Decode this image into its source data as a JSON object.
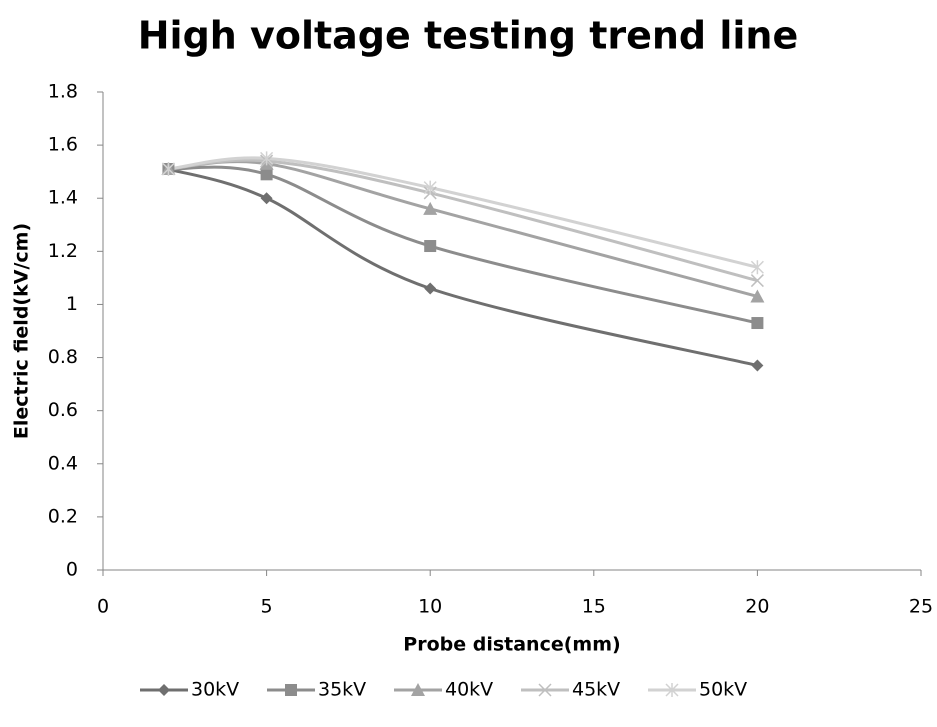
{
  "chart_data": {
    "type": "line",
    "title": "High voltage testing trend line",
    "x_label": "Probe distance(mm)",
    "y_label": "Electric field(kV/cm)",
    "x": [
      2,
      5,
      10,
      20
    ],
    "series": [
      {
        "name": "30kV",
        "color": "#6f6f6f",
        "marker": "diamond",
        "values": [
          1.51,
          1.4,
          1.06,
          0.77
        ]
      },
      {
        "name": "35kV",
        "color": "#8c8c8c",
        "marker": "square",
        "values": [
          1.51,
          1.49,
          1.22,
          0.93
        ]
      },
      {
        "name": "40kV",
        "color": "#a3a3a3",
        "marker": "triangle",
        "values": [
          1.51,
          1.53,
          1.36,
          1.03
        ]
      },
      {
        "name": "45kV",
        "color": "#bfbfbf",
        "marker": "x",
        "values": [
          1.51,
          1.54,
          1.42,
          1.09
        ]
      },
      {
        "name": "50kV",
        "color": "#d2d2d2",
        "marker": "star",
        "values": [
          1.51,
          1.55,
          1.44,
          1.14
        ]
      }
    ],
    "smooth": true,
    "xlim": [
      0,
      25
    ],
    "xticks": [
      0,
      5,
      10,
      15,
      20,
      25
    ],
    "ylim": [
      0,
      1.8
    ],
    "yticks": [
      0,
      0.2,
      0.4,
      0.6,
      0.8,
      1,
      1.2,
      1.4,
      1.6,
      1.8
    ],
    "grid": false,
    "legend": "bottom"
  }
}
